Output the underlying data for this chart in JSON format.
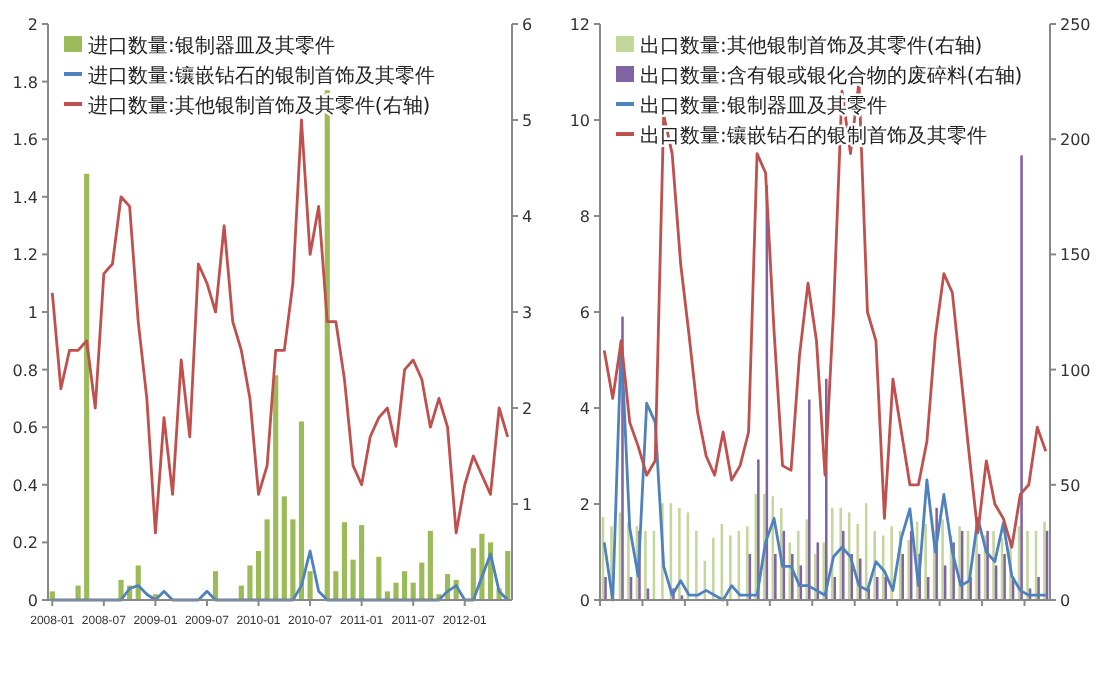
{
  "chart_data": [
    {
      "type": "bar",
      "legend": "top left",
      "x": [
        "2008-01",
        "2008-02",
        "2008-03",
        "2008-04",
        "2008-05",
        "2008-06",
        "2008-07",
        "2008-08",
        "2008-09",
        "2008-10",
        "2008-11",
        "2008-12",
        "2009-01",
        "2009-02",
        "2009-03",
        "2009-04",
        "2009-05",
        "2009-06",
        "2009-07",
        "2009-08",
        "2009-09",
        "2009-10",
        "2009-11",
        "2009-12",
        "2010-01",
        "2010-02",
        "2010-03",
        "2010-04",
        "2010-05",
        "2010-06",
        "2010-07",
        "2010-08",
        "2010-09",
        "2010-10",
        "2010-11",
        "2010-12",
        "2011-01",
        "2011-02",
        "2011-03",
        "2011-04",
        "2011-05",
        "2011-06",
        "2011-07",
        "2011-08",
        "2011-09",
        "2011-10",
        "2011-11",
        "2011-12",
        "2012-01",
        "2012-02",
        "2012-03",
        "2012-04",
        "2012-05",
        "2012-06"
      ],
      "xlim": [
        "2008-01",
        "2012-06"
      ],
      "xticks": [
        "2008-01",
        "2008-07",
        "2009-01",
        "2009-07",
        "2010-01",
        "2010-07",
        "2011-01",
        "2011-07",
        "2012-01"
      ],
      "ylim": [
        0,
        2
      ],
      "yticks": [
        0,
        0.2,
        0.4,
        0.6,
        0.8,
        1,
        1.2,
        1.4,
        1.6,
        1.8,
        2
      ],
      "y2lim": [
        0,
        6
      ],
      "y2ticks": [
        1,
        2,
        3,
        4,
        5,
        6
      ],
      "series": [
        {
          "name": "进口数量:银制器皿及其零件",
          "color": "#9bbb59",
          "values": [
            0.03,
            0,
            0,
            0.05,
            1.48,
            0,
            0,
            0,
            0.07,
            0.05,
            0.12,
            0,
            0.02,
            0,
            0,
            0,
            0,
            0,
            0,
            0.1,
            0,
            0,
            0.05,
            0.12,
            0.17,
            0.28,
            0.78,
            0.36,
            0.28,
            0.62,
            0.1,
            0,
            1.77,
            0.1,
            0.27,
            0.14,
            0.26,
            0,
            0.15,
            0.03,
            0.06,
            0.1,
            0.06,
            0.13,
            0.24,
            0.02,
            0.09,
            0.07,
            0,
            0.18,
            0.23,
            0.2,
            0.04,
            0.17
          ]
        },
        {
          "name": "进口数量:镶嵌钻石的银制首饰及其零件",
          "type": "line",
          "color": "#4f81bd",
          "values": [
            0,
            0,
            0,
            0,
            0,
            0,
            0,
            0,
            0,
            0.04,
            0.05,
            0.02,
            0,
            0.03,
            0,
            0,
            0,
            0,
            0.03,
            0,
            0,
            0,
            0,
            0,
            0,
            0,
            0,
            0,
            0,
            0.05,
            0.17,
            0.03,
            0,
            0,
            0,
            0,
            0,
            0,
            0,
            0,
            0,
            0,
            0,
            0,
            0,
            0,
            0.03,
            0.05,
            0,
            0,
            0.08,
            0.16,
            0.03,
            0
          ]
        },
        {
          "name": "进口数量:其他银制首饰及其零件(右轴)",
          "type": "line",
          "axis": "y2",
          "color": "#c0504d",
          "values": [
            3.2,
            2.2,
            2.6,
            2.6,
            2.7,
            2.0,
            3.4,
            3.5,
            4.2,
            4.1,
            2.9,
            2.1,
            0.7,
            1.9,
            1.1,
            2.5,
            1.7,
            3.5,
            3.3,
            3.0,
            3.9,
            2.9,
            2.6,
            2.1,
            1.1,
            1.4,
            2.6,
            2.6,
            3.3,
            5.0,
            3.6,
            4.1,
            2.9,
            2.9,
            2.3,
            1.4,
            1.2,
            1.7,
            1.9,
            2.0,
            1.6,
            2.4,
            2.5,
            2.3,
            1.8,
            2.1,
            1.8,
            0.7,
            1.2,
            1.5,
            1.3,
            1.1,
            2.0,
            1.7
          ]
        }
      ]
    },
    {
      "type": "bar",
      "legend": "top left",
      "categories": [
        null,
        null,
        null,
        null,
        null,
        null,
        null,
        null,
        null,
        null,
        null,
        null,
        null,
        null,
        null,
        null,
        null,
        null,
        null,
        null,
        null,
        null,
        null,
        null,
        null,
        null,
        null,
        null,
        null,
        null,
        null,
        null,
        null,
        null,
        null,
        null,
        null,
        null,
        null,
        null,
        null,
        null,
        null,
        null,
        null,
        null,
        null,
        null,
        null,
        null,
        null,
        null,
        null
      ],
      "ylim": [
        0,
        12
      ],
      "yticks": [
        0,
        2,
        4,
        6,
        8,
        10,
        12
      ],
      "y2lim": [
        0,
        250
      ],
      "y2ticks": [
        0,
        50,
        100,
        150,
        200,
        250
      ],
      "series": [
        {
          "name": "出口数量:其他银制首饰及其零件(右轴)",
          "axis": "y2",
          "color": "#c3d69b",
          "values": [
            36,
            32,
            38,
            34,
            32,
            30,
            30,
            42,
            42,
            40,
            38,
            30,
            17,
            27,
            33,
            28,
            30,
            32,
            46,
            46,
            45,
            40,
            25,
            30,
            35,
            20,
            25,
            40,
            40,
            38,
            33,
            42,
            30,
            28,
            32,
            30,
            26,
            34,
            33,
            30,
            35,
            28,
            32,
            30,
            34,
            28,
            30,
            27,
            26,
            32,
            30,
            30,
            34
          ]
        },
        {
          "name": "出口数量:含有银或银化合物的废碎料(右轴)",
          "axis": "y2",
          "color": "#8064a2",
          "values": [
            10,
            0,
            123,
            10,
            30,
            5,
            0,
            0,
            5,
            2,
            0,
            0,
            0,
            0,
            null,
            0,
            0,
            20,
            61,
            180,
            20,
            30,
            20,
            15,
            87,
            25,
            96,
            10,
            30,
            20,
            18,
            5,
            10,
            10,
            null,
            20,
            30,
            20,
            10,
            40,
            15,
            25,
            30,
            10,
            20,
            30,
            15,
            20,
            10,
            193,
            5,
            10,
            30
          ]
        },
        {
          "name": "出口数量:银制器皿及其零件",
          "type": "line",
          "color": "#4f81bd",
          "values": [
            1.2,
            0,
            5.4,
            1.5,
            0.5,
            4.1,
            3.7,
            0.7,
            0.1,
            0.4,
            0.1,
            0.1,
            0.2,
            0.1,
            0,
            0.3,
            0.1,
            0.1,
            0.1,
            1.2,
            1.7,
            0.7,
            0.7,
            0.3,
            0.3,
            0.2,
            0.1,
            0.9,
            1.1,
            0.9,
            0.3,
            0.2,
            0.8,
            0.6,
            0.2,
            1.3,
            1.9,
            0.3,
            2.5,
            1.0,
            2.2,
            1.0,
            0.3,
            0.4,
            1.7,
            1.0,
            0.8,
            1.6,
            0.5,
            0.2,
            0.1,
            0.1,
            0.1
          ]
        },
        {
          "name": "出口数量:镶嵌钻石的银制首饰及其零件",
          "type": "line",
          "color": "#c0504d",
          "values": [
            5.2,
            4.2,
            5.4,
            3.7,
            3.2,
            2.6,
            2.9,
            10.1,
            9.3,
            7.0,
            5.5,
            3.9,
            3.0,
            2.6,
            3.5,
            2.5,
            2.8,
            3.5,
            9.3,
            8.9,
            5.6,
            2.8,
            2.7,
            5.1,
            6.6,
            5.4,
            2.6,
            6.0,
            10.6,
            9.3,
            10.8,
            6.0,
            5.4,
            1.7,
            4.6,
            3.5,
            2.4,
            2.4,
            3.3,
            5.5,
            6.8,
            6.4,
            4.7,
            3.0,
            1.4,
            2.9,
            2.0,
            1.7,
            1.1,
            2.2,
            2.4,
            3.6,
            3.1
          ]
        }
      ]
    }
  ]
}
